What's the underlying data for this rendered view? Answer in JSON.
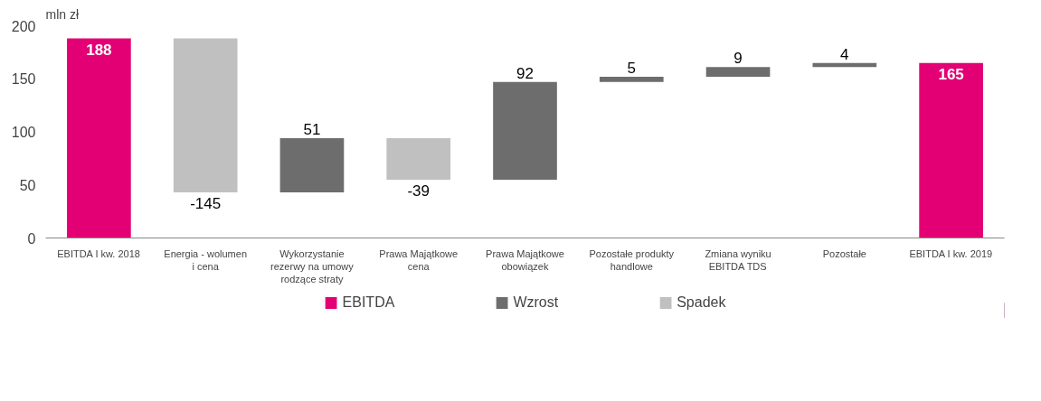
{
  "chart_data": {
    "type": "bar",
    "ylabel": "mln zł",
    "categories": [
      "EBITDA I kw. 2018",
      "Energia - wolumen i cena",
      "Wykorzystanie rezerwy na umowy rodzące straty",
      "Prawa Majątkowe cena",
      "Prawa Majątkowe obowiązek",
      "Pozostałe produkty handlowe",
      "Zmiana wyniku EBITDA TDS",
      "Pozostałe",
      "EBITDA I kw. 2019"
    ],
    "series": [
      {
        "name": "EBITDA",
        "color": "#e20074",
        "values": [
          188,
          null,
          null,
          null,
          null,
          null,
          null,
          null,
          165
        ],
        "base": [
          0,
          null,
          null,
          null,
          null,
          null,
          null,
          null,
          0
        ]
      },
      {
        "name": "Wzrost",
        "color": "#6d6d6d",
        "values": [
          null,
          null,
          51,
          null,
          92,
          5,
          9,
          4,
          null
        ],
        "base": [
          null,
          null,
          43,
          null,
          55,
          147,
          152,
          161,
          null
        ]
      },
      {
        "name": "Spadek",
        "color": "#c0c0c0",
        "values": [
          null,
          -145,
          null,
          -39,
          null,
          null,
          null,
          null,
          null
        ],
        "base": [
          null,
          188,
          null,
          94,
          null,
          null,
          null,
          null,
          null
        ]
      }
    ],
    "ylim": [
      0,
      200
    ],
    "grid": false,
    "yticks": [
      0,
      50,
      100,
      150,
      200
    ],
    "legend": "bottom",
    "data_labels": true
  }
}
